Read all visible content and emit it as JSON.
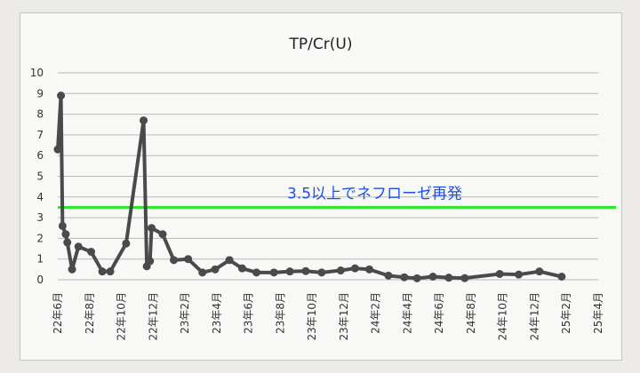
{
  "chart_data": {
    "type": "line",
    "title": "TP/Cr(U)",
    "ylim": [
      0,
      10
    ],
    "yticks": [
      0,
      1,
      2,
      3,
      4,
      5,
      6,
      7,
      8,
      9,
      10
    ],
    "grid": true,
    "x_tick_labels": [
      "22年6月",
      "22年8月",
      "22年10月",
      "22年12月",
      "23年2月",
      "23年4月",
      "23年6月",
      "23年8月",
      "23年10月",
      "23年12月",
      "24年2月",
      "24年4月",
      "24年6月",
      "24年8月",
      "24年10月",
      "24年12月",
      "25年2月",
      "25年4月"
    ],
    "series": [
      {
        "color": "#4a4a4a",
        "points": [
          {
            "m": 0.0,
            "y": 6.3
          },
          {
            "m": 0.2,
            "y": 8.9
          },
          {
            "m": 0.3,
            "y": 2.6
          },
          {
            "m": 0.5,
            "y": 2.2
          },
          {
            "m": 0.6,
            "y": 1.8
          },
          {
            "m": 0.9,
            "y": 0.5
          },
          {
            "m": 1.3,
            "y": 1.6
          },
          {
            "m": 2.1,
            "y": 1.35
          },
          {
            "m": 2.8,
            "y": 0.4
          },
          {
            "m": 3.3,
            "y": 0.4
          },
          {
            "m": 4.3,
            "y": 1.75
          },
          {
            "m": 5.4,
            "y": 7.7
          },
          {
            "m": 5.6,
            "y": 0.65
          },
          {
            "m": 5.8,
            "y": 0.9
          },
          {
            "m": 5.9,
            "y": 2.5
          },
          {
            "m": 6.6,
            "y": 2.2
          },
          {
            "m": 7.3,
            "y": 0.95
          },
          {
            "m": 8.2,
            "y": 1.0
          },
          {
            "m": 9.1,
            "y": 0.35
          },
          {
            "m": 9.9,
            "y": 0.5
          },
          {
            "m": 10.8,
            "y": 0.95
          },
          {
            "m": 11.6,
            "y": 0.55
          },
          {
            "m": 12.5,
            "y": 0.35
          },
          {
            "m": 13.6,
            "y": 0.35
          },
          {
            "m": 14.6,
            "y": 0.4
          },
          {
            "m": 15.6,
            "y": 0.42
          },
          {
            "m": 16.6,
            "y": 0.35
          },
          {
            "m": 17.8,
            "y": 0.45
          },
          {
            "m": 18.7,
            "y": 0.55
          },
          {
            "m": 19.6,
            "y": 0.5
          },
          {
            "m": 20.8,
            "y": 0.2
          },
          {
            "m": 21.8,
            "y": 0.12
          },
          {
            "m": 22.6,
            "y": 0.07
          },
          {
            "m": 23.6,
            "y": 0.15
          },
          {
            "m": 24.6,
            "y": 0.1
          },
          {
            "m": 25.6,
            "y": 0.08
          },
          {
            "m": 27.8,
            "y": 0.28
          },
          {
            "m": 29.0,
            "y": 0.25
          },
          {
            "m": 30.3,
            "y": 0.4
          },
          {
            "m": 31.7,
            "y": 0.15
          }
        ]
      }
    ],
    "threshold": {
      "value": 3.5,
      "label": "3.5以上でネフローゼ再発",
      "color": "#2ee82e",
      "label_color": "#1d4fe6"
    }
  }
}
